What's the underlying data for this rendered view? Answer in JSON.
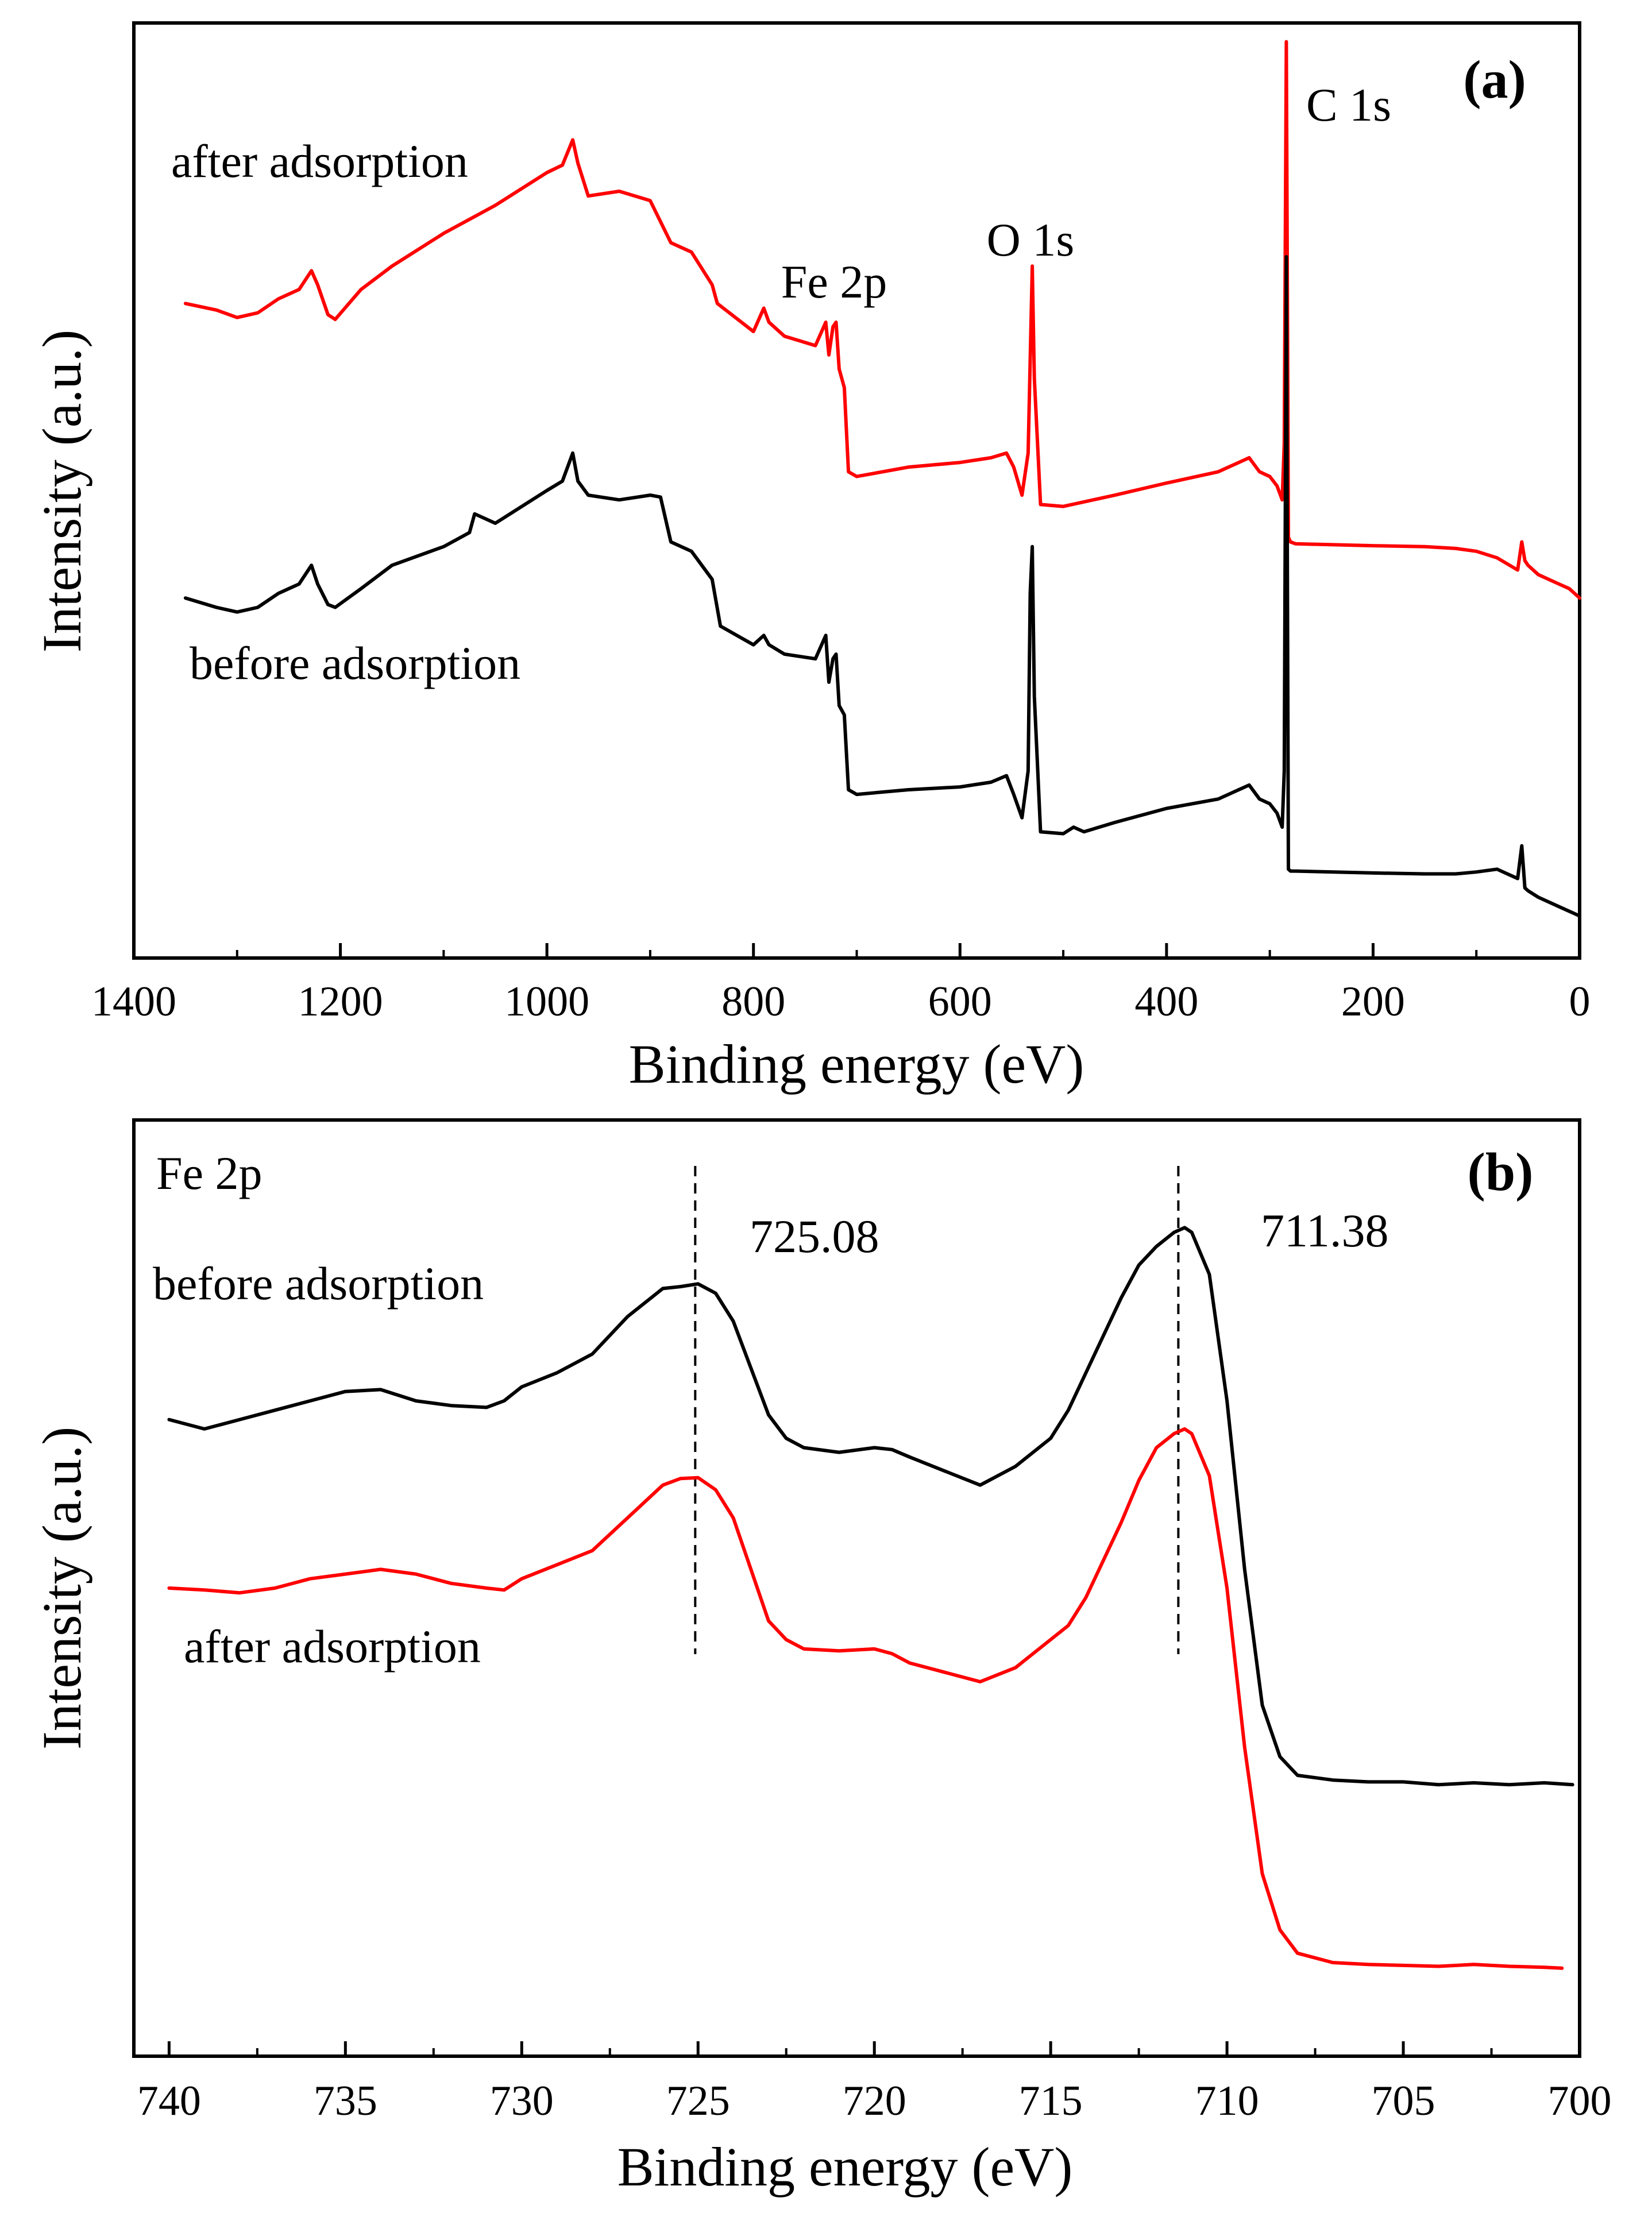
{
  "chart_data": [
    {
      "type": "line",
      "panel_label": "(a)",
      "xlabel": "Binding energy (eV)",
      "ylabel": "Intensity (a.u.)",
      "x_reversed": true,
      "xlim": [
        1400,
        0
      ],
      "xticks": [
        1400,
        1200,
        1000,
        800,
        600,
        400,
        200,
        0
      ],
      "ylim": [
        0,
        100
      ],
      "peak_labels": [
        "Fe 2p",
        "O 1s",
        "C 1s"
      ],
      "series": [
        {
          "name": "after adsorption",
          "color": "#ff0000",
          "x": [
            1350,
            1320,
            1300,
            1280,
            1260,
            1240,
            1228,
            1222,
            1212,
            1205,
            1180,
            1150,
            1100,
            1050,
            1000,
            985,
            975,
            970,
            960,
            930,
            900,
            880,
            860,
            840,
            835,
            800,
            790,
            785,
            770,
            740,
            730,
            727,
            723,
            720,
            717,
            712,
            708,
            700,
            650,
            600,
            570,
            555,
            548,
            540,
            534,
            532,
            530,
            528,
            522,
            500,
            450,
            400,
            350,
            320,
            310,
            300,
            293,
            288,
            286,
            284,
            282,
            280,
            275,
            200,
            150,
            120,
            100,
            80,
            60,
            56,
            53,
            50,
            40,
            20,
            10,
            0
          ],
          "y": [
            70.0,
            69.3,
            68.5,
            69.0,
            70.5,
            71.5,
            73.5,
            72.0,
            68.8,
            68.3,
            71.5,
            74.0,
            77.5,
            80.5,
            84.0,
            84.8,
            87.5,
            85.0,
            81.5,
            82.0,
            81.0,
            76.5,
            75.5,
            72.0,
            70.0,
            67.0,
            69.5,
            68.0,
            66.5,
            65.5,
            68.0,
            64.5,
            67.5,
            68.0,
            63.0,
            61.0,
            52.0,
            51.5,
            52.5,
            53.0,
            53.5,
            54.0,
            52.5,
            49.5,
            54.0,
            64.0,
            74.0,
            62.0,
            48.5,
            48.3,
            49.5,
            50.8,
            52.0,
            53.5,
            52.0,
            51.5,
            50.5,
            49.0,
            55.0,
            98.0,
            45.0,
            44.5,
            44.3,
            44.1,
            44.0,
            43.8,
            43.5,
            42.8,
            41.5,
            44.5,
            42.5,
            42.0,
            41.0,
            40.0,
            39.5,
            38.5
          ]
        },
        {
          "name": "before adsorption",
          "color": "#000000",
          "x": [
            1350,
            1320,
            1300,
            1280,
            1260,
            1240,
            1228,
            1222,
            1212,
            1205,
            1180,
            1150,
            1100,
            1075,
            1070,
            1050,
            1000,
            985,
            975,
            970,
            960,
            930,
            900,
            890,
            880,
            860,
            840,
            832,
            800,
            790,
            785,
            770,
            740,
            730,
            727,
            723,
            720,
            717,
            712,
            708,
            700,
            650,
            600,
            570,
            555,
            548,
            540,
            534,
            532,
            530,
            528,
            522,
            500,
            490,
            480,
            450,
            400,
            350,
            320,
            310,
            300,
            293,
            288,
            286,
            284,
            282,
            280,
            275,
            200,
            150,
            120,
            100,
            80,
            60,
            56,
            53,
            50,
            40,
            20,
            10,
            0
          ],
          "y": [
            38.5,
            37.5,
            37.0,
            37.5,
            39.0,
            40.0,
            42.0,
            40.0,
            37.8,
            37.5,
            39.5,
            42.0,
            44.0,
            45.5,
            47.5,
            46.5,
            50.0,
            51.0,
            54.0,
            51.0,
            49.5,
            49.0,
            49.5,
            49.3,
            44.5,
            43.5,
            40.5,
            35.5,
            33.5,
            34.5,
            33.5,
            32.5,
            32.0,
            34.5,
            29.5,
            32.0,
            32.5,
            27.0,
            26.0,
            18.0,
            17.5,
            18.0,
            18.3,
            18.8,
            19.5,
            17.5,
            15.0,
            20.0,
            39.0,
            44.0,
            28.0,
            13.5,
            13.3,
            14.0,
            13.5,
            14.5,
            16.0,
            17.0,
            18.5,
            17.0,
            16.5,
            15.5,
            14.0,
            20.0,
            75.0,
            9.5,
            9.3,
            9.3,
            9.1,
            9.0,
            9.0,
            9.2,
            9.5,
            8.5,
            12.0,
            7.5,
            7.2,
            6.5,
            5.5,
            5.0,
            4.5
          ]
        }
      ]
    },
    {
      "type": "line",
      "panel_label": "(b)",
      "xlabel": "Binding energy (eV)",
      "ylabel": "Intensity (a.u.)",
      "x_reversed": true,
      "xlim": [
        741,
        700
      ],
      "xticks": [
        740,
        735,
        730,
        725,
        720,
        715,
        710,
        705,
        700
      ],
      "ylim": [
        0,
        100
      ],
      "region_label": "Fe 2p",
      "reference_lines": [
        725.08,
        711.38
      ],
      "peak_labels": [
        "725.08",
        "711.38"
      ],
      "series": [
        {
          "name": "before adsorption",
          "color": "#000000",
          "x": [
            740.0,
            739.0,
            738.0,
            737.0,
            736.0,
            735.0,
            734.0,
            733.0,
            732.0,
            731.0,
            730.5,
            730.0,
            729.0,
            728.0,
            727.0,
            726.0,
            725.5,
            725.0,
            724.5,
            724.0,
            723.5,
            723.0,
            722.5,
            722.0,
            721.0,
            720.0,
            719.5,
            719.0,
            718.0,
            717.0,
            716.0,
            715.0,
            714.5,
            714.0,
            713.5,
            713.0,
            712.5,
            712.0,
            711.5,
            711.2,
            711.0,
            710.5,
            710.0,
            709.5,
            709.0,
            708.5,
            708.0,
            707.0,
            706.0,
            705.0,
            704.0,
            703.0,
            702.0,
            701.0,
            700.2
          ],
          "y": [
            68.0,
            67.0,
            68.0,
            69.0,
            70.0,
            71.0,
            71.2,
            70.0,
            69.5,
            69.3,
            70.0,
            71.5,
            73.0,
            75.0,
            79.0,
            82.0,
            82.2,
            82.5,
            81.5,
            78.5,
            73.5,
            68.5,
            66.0,
            65.0,
            64.5,
            65.0,
            64.8,
            64.0,
            62.5,
            61.0,
            63.0,
            66.0,
            69.0,
            73.0,
            77.0,
            81.0,
            84.5,
            86.5,
            88.0,
            88.5,
            88.0,
            83.5,
            70.0,
            52.0,
            37.5,
            32.0,
            30.0,
            29.5,
            29.3,
            29.3,
            29.0,
            29.2,
            29.0,
            29.2,
            29.0
          ]
        },
        {
          "name": "after adsorption",
          "color": "#ff0000",
          "x": [
            740.0,
            739.0,
            738.0,
            737.0,
            736.0,
            735.0,
            734.0,
            733.0,
            732.0,
            731.0,
            730.5,
            730.0,
            729.0,
            728.0,
            727.0,
            726.0,
            725.5,
            725.0,
            724.5,
            724.0,
            723.5,
            723.0,
            722.5,
            722.0,
            721.0,
            720.0,
            719.5,
            719.0,
            718.0,
            717.0,
            716.0,
            715.0,
            714.5,
            714.0,
            713.5,
            713.0,
            712.5,
            712.0,
            711.5,
            711.2,
            711.0,
            710.5,
            710.0,
            709.5,
            709.0,
            708.5,
            708.0,
            707.0,
            706.0,
            705.0,
            704.0,
            703.0,
            702.0,
            701.0,
            700.5
          ],
          "y": [
            50.0,
            49.8,
            49.5,
            50.0,
            51.0,
            51.5,
            52.0,
            51.5,
            50.5,
            50.0,
            49.8,
            51.0,
            52.5,
            54.0,
            57.5,
            61.0,
            61.7,
            61.8,
            60.5,
            57.5,
            52.0,
            46.5,
            44.5,
            43.5,
            43.3,
            43.5,
            43.0,
            42.0,
            41.0,
            40.0,
            41.5,
            44.5,
            46.0,
            49.0,
            53.0,
            57.0,
            61.5,
            65.0,
            66.5,
            67.0,
            66.5,
            62.0,
            50.0,
            33.0,
            19.5,
            13.5,
            11.0,
            10.0,
            9.8,
            9.7,
            9.6,
            9.8,
            9.6,
            9.5,
            9.4
          ]
        }
      ]
    }
  ]
}
